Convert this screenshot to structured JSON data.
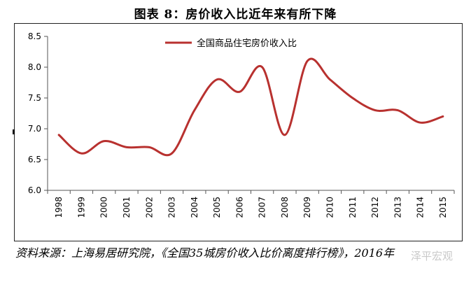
{
  "title": "图表 8：房价收入比近年来有所下降",
  "source_note": "资料来源：上海易居研究院，《全国35城房价收入比价离度排行榜》，2016年",
  "watermark": "泽平宏观",
  "colors": {
    "series": "#b8312f",
    "axis": "#555555",
    "frame": "#222222"
  },
  "chart_data": {
    "type": "line",
    "x": [
      "1998",
      "1999",
      "2000",
      "2001",
      "2002",
      "2003",
      "2004",
      "2005",
      "2006",
      "2007",
      "2008",
      "2009",
      "2010",
      "2011",
      "2012",
      "2013",
      "2014",
      "2015"
    ],
    "series": [
      {
        "name": "全国商品住宅房价收入比",
        "values": [
          6.9,
          6.6,
          6.8,
          6.7,
          6.7,
          6.6,
          7.3,
          7.8,
          7.6,
          8.0,
          6.9,
          8.1,
          7.8,
          7.5,
          7.3,
          7.3,
          7.1,
          7.2
        ]
      }
    ],
    "yticks": [
      "6.0",
      "6.5",
      "7.0",
      "7.5",
      "8.0",
      "8.5"
    ],
    "ylim": [
      6.0,
      8.5
    ],
    "legend_position": "top",
    "grid": false
  }
}
